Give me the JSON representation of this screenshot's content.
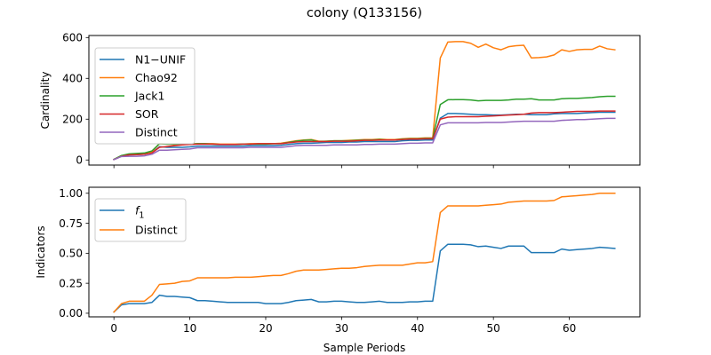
{
  "figure": {
    "title": "colony (Q133156)",
    "xlabel": "Sample Periods"
  },
  "chart_data": [
    {
      "type": "line",
      "panel": "top",
      "ylabel": "Cardinality",
      "xlim": [
        -3.3,
        69.3
      ],
      "ylim": [
        -25,
        610
      ],
      "xticks": [
        0,
        10,
        20,
        30,
        40,
        50,
        60
      ],
      "yticks": [
        0,
        200,
        400,
        600
      ],
      "x_tick_labels_visible": false,
      "legend_position": "upper-left",
      "grid": false,
      "x": [
        0,
        1,
        2,
        3,
        4,
        5,
        6,
        7,
        8,
        9,
        10,
        11,
        12,
        13,
        14,
        15,
        16,
        17,
        18,
        19,
        20,
        21,
        22,
        23,
        24,
        25,
        26,
        27,
        28,
        29,
        30,
        31,
        32,
        33,
        34,
        35,
        36,
        37,
        38,
        39,
        40,
        41,
        42,
        43,
        44,
        45,
        46,
        47,
        48,
        49,
        50,
        51,
        52,
        53,
        54,
        55,
        56,
        57,
        58,
        59,
        60,
        61,
        62,
        63,
        64,
        65,
        66
      ],
      "series": [
        {
          "name": "N1−UNIF",
          "color": "#1f77b4",
          "values": [
            2,
            18,
            25,
            26,
            28,
            35,
            65,
            62,
            62,
            62,
            64,
            68,
            68,
            68,
            68,
            68,
            68,
            68,
            70,
            70,
            70,
            70,
            72,
            76,
            80,
            82,
            82,
            84,
            86,
            86,
            86,
            88,
            88,
            90,
            90,
            90,
            90,
            90,
            94,
            96,
            96,
            98,
            98,
            205,
            228,
            228,
            226,
            224,
            222,
            222,
            220,
            220,
            222,
            224,
            224,
            222,
            222,
            222,
            226,
            228,
            228,
            228,
            230,
            232,
            234,
            234,
            234
          ]
        },
        {
          "name": "Chao92",
          "color": "#ff7f0e",
          "values": [
            3,
            20,
            26,
            28,
            30,
            40,
            80,
            78,
            76,
            76,
            78,
            80,
            80,
            80,
            78,
            78,
            78,
            78,
            80,
            80,
            80,
            80,
            82,
            88,
            94,
            98,
            100,
            92,
            92,
            94,
            94,
            96,
            98,
            100,
            100,
            102,
            100,
            100,
            104,
            106,
            106,
            108,
            108,
            500,
            578,
            580,
            580,
            572,
            552,
            568,
            550,
            540,
            555,
            560,
            562,
            500,
            502,
            505,
            515,
            540,
            532,
            540,
            542,
            542,
            558,
            545,
            540
          ]
        },
        {
          "name": "Jack1",
          "color": "#2ca02c",
          "values": [
            3,
            22,
            30,
            32,
            34,
            44,
            80,
            78,
            78,
            78,
            78,
            80,
            80,
            78,
            76,
            76,
            76,
            78,
            78,
            78,
            78,
            80,
            80,
            86,
            92,
            96,
            98,
            90,
            92,
            94,
            94,
            94,
            96,
            98,
            98,
            100,
            98,
            98,
            102,
            104,
            104,
            106,
            106,
            272,
            295,
            296,
            296,
            294,
            290,
            292,
            292,
            292,
            294,
            298,
            298,
            300,
            294,
            294,
            294,
            300,
            302,
            302,
            304,
            306,
            310,
            312,
            312
          ]
        },
        {
          "name": "SOR",
          "color": "#d62728",
          "values": [
            2,
            18,
            25,
            26,
            28,
            34,
            62,
            66,
            70,
            74,
            76,
            78,
            78,
            78,
            76,
            76,
            76,
            78,
            78,
            80,
            80,
            80,
            80,
            84,
            88,
            90,
            90,
            90,
            90,
            92,
            92,
            92,
            94,
            96,
            96,
            98,
            98,
            98,
            100,
            102,
            102,
            104,
            104,
            200,
            210,
            212,
            212,
            212,
            212,
            214,
            216,
            218,
            220,
            222,
            224,
            230,
            232,
            232,
            232,
            234,
            236,
            238,
            238,
            238,
            240,
            240,
            240
          ]
        },
        {
          "name": "Distinct",
          "color": "#9467bd",
          "values": [
            2,
            17,
            18,
            18,
            20,
            28,
            48,
            48,
            50,
            52,
            54,
            60,
            60,
            60,
            60,
            60,
            60,
            60,
            62,
            62,
            62,
            62,
            62,
            66,
            70,
            72,
            72,
            72,
            72,
            74,
            74,
            74,
            74,
            76,
            76,
            78,
            78,
            78,
            80,
            82,
            82,
            84,
            84,
            172,
            182,
            182,
            182,
            182,
            182,
            184,
            184,
            184,
            186,
            188,
            190,
            190,
            190,
            190,
            190,
            194,
            196,
            198,
            198,
            200,
            202,
            204,
            204
          ]
        }
      ]
    },
    {
      "type": "line",
      "panel": "bottom",
      "ylabel": "Indicators",
      "xlim": [
        -3.3,
        69.3
      ],
      "ylim": [
        -0.03,
        1.05
      ],
      "xticks": [
        0,
        10,
        20,
        30,
        40,
        50,
        60
      ],
      "x_tick_labels": [
        "0",
        "10",
        "20",
        "30",
        "40",
        "50",
        "60"
      ],
      "yticks": [
        0,
        0.25,
        0.5,
        0.75,
        1.0
      ],
      "y_tick_labels": [
        "0.00",
        "0.25",
        "0.50",
        "0.75",
        "1.00"
      ],
      "legend_position": "upper-left",
      "grid": false,
      "x": [
        0,
        1,
        2,
        3,
        4,
        5,
        6,
        7,
        8,
        9,
        10,
        11,
        12,
        13,
        14,
        15,
        16,
        17,
        18,
        19,
        20,
        21,
        22,
        23,
        24,
        25,
        26,
        27,
        28,
        29,
        30,
        31,
        32,
        33,
        34,
        35,
        36,
        37,
        38,
        39,
        40,
        41,
        42,
        43,
        44,
        45,
        46,
        47,
        48,
        49,
        50,
        51,
        52,
        53,
        54,
        55,
        56,
        57,
        58,
        59,
        60,
        61,
        62,
        63,
        64,
        65,
        66
      ],
      "series": [
        {
          "name": "f",
          "name_subscript": "1",
          "color": "#1f77b4",
          "values": [
            0.01,
            0.07,
            0.08,
            0.08,
            0.08,
            0.09,
            0.15,
            0.14,
            0.14,
            0.135,
            0.13,
            0.105,
            0.105,
            0.1,
            0.095,
            0.09,
            0.09,
            0.09,
            0.09,
            0.09,
            0.08,
            0.08,
            0.08,
            0.09,
            0.105,
            0.11,
            0.115,
            0.095,
            0.095,
            0.1,
            0.1,
            0.095,
            0.09,
            0.09,
            0.095,
            0.1,
            0.09,
            0.09,
            0.09,
            0.095,
            0.095,
            0.1,
            0.1,
            0.52,
            0.575,
            0.575,
            0.575,
            0.57,
            0.555,
            0.56,
            0.55,
            0.54,
            0.56,
            0.56,
            0.56,
            0.505,
            0.505,
            0.505,
            0.505,
            0.535,
            0.525,
            0.53,
            0.535,
            0.54,
            0.55,
            0.545,
            0.54
          ]
        },
        {
          "name": "Distinct",
          "color": "#ff7f0e",
          "values": [
            0.01,
            0.08,
            0.1,
            0.1,
            0.1,
            0.15,
            0.24,
            0.245,
            0.25,
            0.265,
            0.27,
            0.295,
            0.295,
            0.295,
            0.295,
            0.295,
            0.3,
            0.3,
            0.3,
            0.305,
            0.31,
            0.315,
            0.315,
            0.33,
            0.35,
            0.36,
            0.36,
            0.36,
            0.365,
            0.37,
            0.375,
            0.375,
            0.38,
            0.39,
            0.395,
            0.4,
            0.4,
            0.4,
            0.4,
            0.41,
            0.42,
            0.42,
            0.43,
            0.84,
            0.895,
            0.895,
            0.895,
            0.895,
            0.895,
            0.9,
            0.905,
            0.91,
            0.925,
            0.93,
            0.935,
            0.935,
            0.935,
            0.935,
            0.94,
            0.97,
            0.975,
            0.98,
            0.985,
            0.99,
            1.0,
            1.0,
            1.0
          ]
        }
      ]
    }
  ]
}
